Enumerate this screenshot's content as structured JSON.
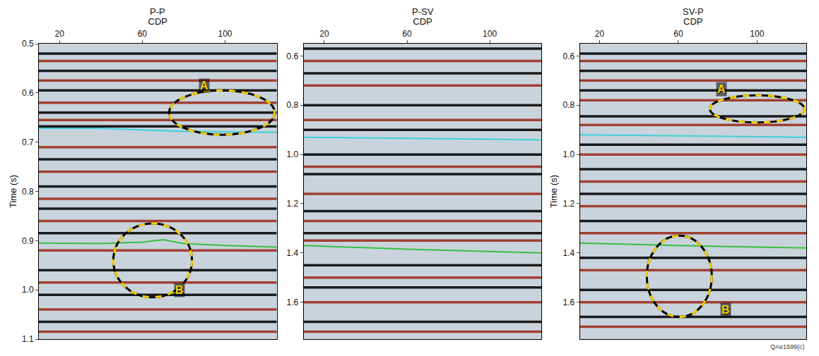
{
  "chart_data": [
    {
      "type": "seismic",
      "title": "P-P",
      "x_label": "CDP",
      "y_label": "Time (s)",
      "xlim": [
        10,
        125
      ],
      "xticks": [
        20,
        60,
        100
      ],
      "ylim": [
        0.5,
        1.1
      ],
      "yticks": [
        0.5,
        0.6,
        0.7,
        0.8,
        0.9,
        {
          "value": 1,
          "label": "1.0"
        },
        1.1
      ],
      "reflectors": [
        {
          "time": 0.52,
          "color": "#1a1a1a"
        },
        {
          "time": 0.535,
          "color": "#a04030"
        },
        {
          "time": 0.555,
          "color": "#1a1a1a"
        },
        {
          "time": 0.575,
          "color": "#a04030"
        },
        {
          "time": 0.595,
          "color": "#1a1a1a"
        },
        {
          "time": 0.62,
          "color": "#a04030"
        },
        {
          "time": 0.64,
          "color": "#1a1a1a"
        },
        {
          "time": 0.655,
          "color": "#a04030"
        },
        {
          "time": 0.668,
          "color": "#1a1a1a"
        },
        {
          "time": 0.71,
          "color": "#a04030"
        },
        {
          "time": 0.735,
          "color": "#1a1a1a"
        },
        {
          "time": 0.76,
          "color": "#a04030"
        },
        {
          "time": 0.79,
          "color": "#1a1a1a"
        },
        {
          "time": 0.815,
          "color": "#a04030"
        },
        {
          "time": 0.835,
          "color": "#1a1a1a"
        },
        {
          "time": 0.86,
          "color": "#a04030"
        },
        {
          "time": 0.885,
          "color": "#1a1a1a"
        },
        {
          "time": 0.92,
          "color": "#a04030"
        },
        {
          "time": 0.96,
          "color": "#1a1a1a"
        },
        {
          "time": 0.985,
          "color": "#a04030"
        },
        {
          "time": 1.01,
          "color": "#1a1a1a"
        },
        {
          "time": 1.04,
          "color": "#a04030"
        },
        {
          "time": 1.065,
          "color": "#1a1a1a"
        },
        {
          "time": 1.085,
          "color": "#a04030"
        }
      ],
      "horizons": [
        {
          "color": "#3fd0d8",
          "x": [
            10,
            40,
            60,
            80,
            100,
            125
          ],
          "values": [
            0.672,
            0.672,
            0.675,
            0.678,
            0.679,
            0.68
          ]
        },
        {
          "color": "#35c040",
          "x": [
            10,
            40,
            60,
            70,
            80,
            100,
            125
          ],
          "values": [
            0.905,
            0.906,
            0.903,
            0.898,
            0.906,
            0.91,
            0.913
          ]
        }
      ],
      "ellipses": [
        {
          "x0": 73,
          "x1": 124,
          "y0": 0.595,
          "y1": 0.685
        },
        {
          "x0": 46,
          "x1": 84,
          "y0": 0.865,
          "y1": 1.015
        }
      ],
      "annotations": [
        {
          "text": "A",
          "x": 90,
          "y": 0.585
        },
        {
          "text": "B",
          "x": 78,
          "y": 1.0
        }
      ]
    },
    {
      "type": "seismic",
      "title": "P-SV",
      "x_label": "CDP",
      "xlim": [
        10,
        125
      ],
      "xticks": [
        20,
        60,
        100
      ],
      "ylim": [
        0.55,
        1.75
      ],
      "yticks": [
        0.6,
        0.8,
        {
          "value": 1,
          "label": "1.0"
        },
        1.2,
        1.4,
        1.6
      ],
      "reflectors": [
        {
          "time": 0.57,
          "color": "#1a1a1a"
        },
        {
          "time": 0.62,
          "color": "#a04030"
        },
        {
          "time": 0.67,
          "color": "#1a1a1a"
        },
        {
          "time": 0.72,
          "color": "#a04030"
        },
        {
          "time": 0.8,
          "color": "#1a1a1a"
        },
        {
          "time": 0.86,
          "color": "#a04030"
        },
        {
          "time": 0.9,
          "color": "#1a1a1a"
        },
        {
          "time": 1.0,
          "color": "#1a1a1a"
        },
        {
          "time": 1.05,
          "color": "#a04030"
        },
        {
          "time": 1.08,
          "color": "#1a1a1a"
        },
        {
          "time": 1.16,
          "color": "#a04030"
        },
        {
          "time": 1.23,
          "color": "#1a1a1a"
        },
        {
          "time": 1.27,
          "color": "#a04030"
        },
        {
          "time": 1.32,
          "color": "#1a1a1a"
        },
        {
          "time": 1.35,
          "color": "#a04030"
        },
        {
          "time": 1.45,
          "color": "#1a1a1a"
        },
        {
          "time": 1.5,
          "color": "#a04030"
        },
        {
          "time": 1.54,
          "color": "#1a1a1a"
        },
        {
          "time": 1.6,
          "color": "#a04030"
        },
        {
          "time": 1.68,
          "color": "#1a1a1a"
        },
        {
          "time": 1.72,
          "color": "#a04030"
        }
      ],
      "horizons": [
        {
          "color": "#3fd0d8",
          "x": [
            10,
            60,
            125
          ],
          "values": [
            0.93,
            0.935,
            0.94
          ]
        },
        {
          "color": "#35c040",
          "x": [
            10,
            60,
            125
          ],
          "values": [
            1.37,
            1.385,
            1.4
          ]
        }
      ],
      "ellipses": [],
      "annotations": []
    },
    {
      "type": "seismic",
      "title": "SV-P",
      "x_label": "CDP",
      "y_label": "Time (s)",
      "xlim": [
        10,
        125
      ],
      "xticks": [
        20,
        60,
        100
      ],
      "ylim": [
        0.55,
        1.75
      ],
      "yticks": [
        0.6,
        0.8,
        {
          "value": 1,
          "label": "1.0"
        },
        1.2,
        1.4,
        1.6
      ],
      "reflectors": [
        {
          "time": 0.59,
          "color": "#1a1a1a"
        },
        {
          "time": 0.62,
          "color": "#a04030"
        },
        {
          "time": 0.66,
          "color": "#1a1a1a"
        },
        {
          "time": 0.7,
          "color": "#a04030"
        },
        {
          "time": 0.74,
          "color": "#1a1a1a"
        },
        {
          "time": 0.78,
          "color": "#a04030"
        },
        {
          "time": 0.845,
          "color": "#1a1a1a"
        },
        {
          "time": 0.88,
          "color": "#a04030"
        },
        {
          "time": 0.96,
          "color": "#1a1a1a"
        },
        {
          "time": 1.0,
          "color": "#a04030"
        },
        {
          "time": 1.06,
          "color": "#1a1a1a"
        },
        {
          "time": 1.11,
          "color": "#a04030"
        },
        {
          "time": 1.16,
          "color": "#1a1a1a"
        },
        {
          "time": 1.21,
          "color": "#a04030"
        },
        {
          "time": 1.27,
          "color": "#1a1a1a"
        },
        {
          "time": 1.32,
          "color": "#a04030"
        },
        {
          "time": 1.42,
          "color": "#1a1a1a"
        },
        {
          "time": 1.47,
          "color": "#a04030"
        },
        {
          "time": 1.55,
          "color": "#1a1a1a"
        },
        {
          "time": 1.6,
          "color": "#a04030"
        },
        {
          "time": 1.66,
          "color": "#1a1a1a"
        },
        {
          "time": 1.7,
          "color": "#a04030"
        }
      ],
      "horizons": [
        {
          "color": "#3fd0d8",
          "x": [
            10,
            60,
            125
          ],
          "values": [
            0.92,
            0.925,
            0.93
          ]
        },
        {
          "color": "#35c040",
          "x": [
            10,
            60,
            125
          ],
          "values": [
            1.36,
            1.37,
            1.38
          ]
        }
      ],
      "ellipses": [
        {
          "x0": 76,
          "x1": 124,
          "y0": 0.76,
          "y1": 0.87
        },
        {
          "x0": 44,
          "x1": 77,
          "y0": 1.33,
          "y1": 1.66
        }
      ],
      "annotations": [
        {
          "text": "A",
          "x": 82,
          "y": 0.735
        },
        {
          "text": "B",
          "x": 84,
          "y": 1.63
        }
      ]
    }
  ],
  "footer": "QAe1599(c)"
}
